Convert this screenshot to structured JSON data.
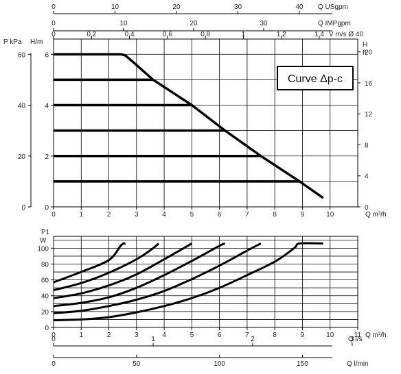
{
  "chart_data": [
    {
      "type": "line",
      "title": "Curve Δp-c",
      "xlabel": "Q m³/h",
      "ylabel_left": "P kPa",
      "ylabel_left2": "H/m",
      "ylabel_right": "H",
      "ylabel_right_unit": "ft",
      "xlim": [
        0,
        10
      ],
      "ylim": [
        0,
        6.6
      ],
      "grid": true,
      "x_ticks": [
        "0",
        "1",
        "2",
        "3",
        "4",
        "5",
        "6",
        "7",
        "8",
        "9",
        "10"
      ],
      "y_ticks_h": [
        "0",
        "2",
        "4",
        "6"
      ],
      "y_ticks_kpa": [
        "0",
        "20",
        "40",
        "60"
      ],
      "y_ticks_ft": [
        "0",
        "4",
        "8",
        "12",
        "16",
        "20"
      ],
      "top_axes": [
        {
          "label": "Q USgpm",
          "max": 44,
          "ticks": [
            "0",
            "10",
            "20",
            "30",
            "40"
          ]
        },
        {
          "label": "Q IMPgpm",
          "max": 36.7,
          "ticks": [
            "0",
            "10",
            "20",
            "30"
          ]
        },
        {
          "label": "V m/s Ø 40",
          "max": 1.47,
          "ticks": [
            "0",
            "0,2",
            "0,4",
            "0,6",
            "0,8",
            "1",
            "1,2",
            "1,4"
          ]
        }
      ],
      "series": [
        {
          "values": [
            [
              0,
              1
            ],
            [
              8.9,
              1
            ]
          ]
        },
        {
          "values": [
            [
              0,
              2
            ],
            [
              7.5,
              2
            ]
          ]
        },
        {
          "values": [
            [
              0,
              3
            ],
            [
              6.2,
              3
            ]
          ]
        },
        {
          "values": [
            [
              0,
              4
            ],
            [
              5,
              4
            ]
          ]
        },
        {
          "values": [
            [
              0,
              5
            ],
            [
              3.6,
              5
            ]
          ]
        },
        {
          "values": [
            [
              0,
              6
            ],
            [
              2.45,
              6
            ],
            [
              2.6,
              5.95
            ],
            [
              2.85,
              5.72
            ],
            [
              3.6,
              5
            ],
            [
              5,
              4
            ],
            [
              6.2,
              3
            ],
            [
              7.5,
              2
            ],
            [
              8.9,
              1
            ],
            [
              9.75,
              0.35
            ]
          ]
        }
      ]
    },
    {
      "type": "line",
      "ylabel": "P1",
      "ylabel_unit": "W",
      "xlabel": "Q m³/h",
      "xlim": [
        0,
        11
      ],
      "ylim": [
        0,
        115
      ],
      "grid": true,
      "x_ticks": [
        "0",
        "1",
        "2",
        "3",
        "4",
        "5",
        "6",
        "7",
        "8",
        "9",
        "10",
        "11"
      ],
      "y_ticks": [
        "0",
        "20",
        "40",
        "60",
        "80",
        "100"
      ],
      "bottom_axes": [
        {
          "label": "Q l/s",
          "max": 3.06,
          "ticks": [
            "0",
            "1",
            "2",
            "3"
          ]
        },
        {
          "label": "Q l/min",
          "max": 183.3,
          "ticks": [
            "0",
            "50",
            "100",
            "150"
          ]
        }
      ],
      "series": [
        {
          "values": [
            [
              0,
              9
            ],
            [
              1,
              10
            ],
            [
              2,
              13
            ],
            [
              3,
              19
            ],
            [
              4,
              27
            ],
            [
              5,
              37
            ],
            [
              6,
              50
            ],
            [
              7,
              66
            ],
            [
              8,
              83
            ],
            [
              8.7,
              100
            ],
            [
              8.9,
              106
            ],
            [
              9.75,
              106
            ]
          ]
        },
        {
          "values": [
            [
              0,
              18
            ],
            [
              1,
              21
            ],
            [
              2,
              27
            ],
            [
              3,
              35
            ],
            [
              4,
              46
            ],
            [
              5,
              61
            ],
            [
              6,
              78
            ],
            [
              7,
              97
            ],
            [
              7.5,
              106
            ]
          ]
        },
        {
          "values": [
            [
              0,
              27
            ],
            [
              1,
              31
            ],
            [
              2,
              38
            ],
            [
              3,
              50
            ],
            [
              4,
              66
            ],
            [
              5,
              84
            ],
            [
              6,
              103
            ],
            [
              6.2,
              106
            ]
          ]
        },
        {
          "values": [
            [
              0,
              37
            ],
            [
              1,
              43
            ],
            [
              2,
              53
            ],
            [
              3,
              67
            ],
            [
              4,
              86
            ],
            [
              5,
              106
            ]
          ]
        },
        {
          "values": [
            [
              0,
              47
            ],
            [
              1,
              56
            ],
            [
              2,
              69
            ],
            [
              3,
              86
            ],
            [
              3.6,
              100
            ],
            [
              3.8,
              106
            ]
          ]
        },
        {
          "values": [
            [
              0,
              57
            ],
            [
              1,
              70
            ],
            [
              2,
              85
            ],
            [
              2.45,
              104
            ],
            [
              2.6,
              106
            ]
          ]
        }
      ]
    }
  ]
}
